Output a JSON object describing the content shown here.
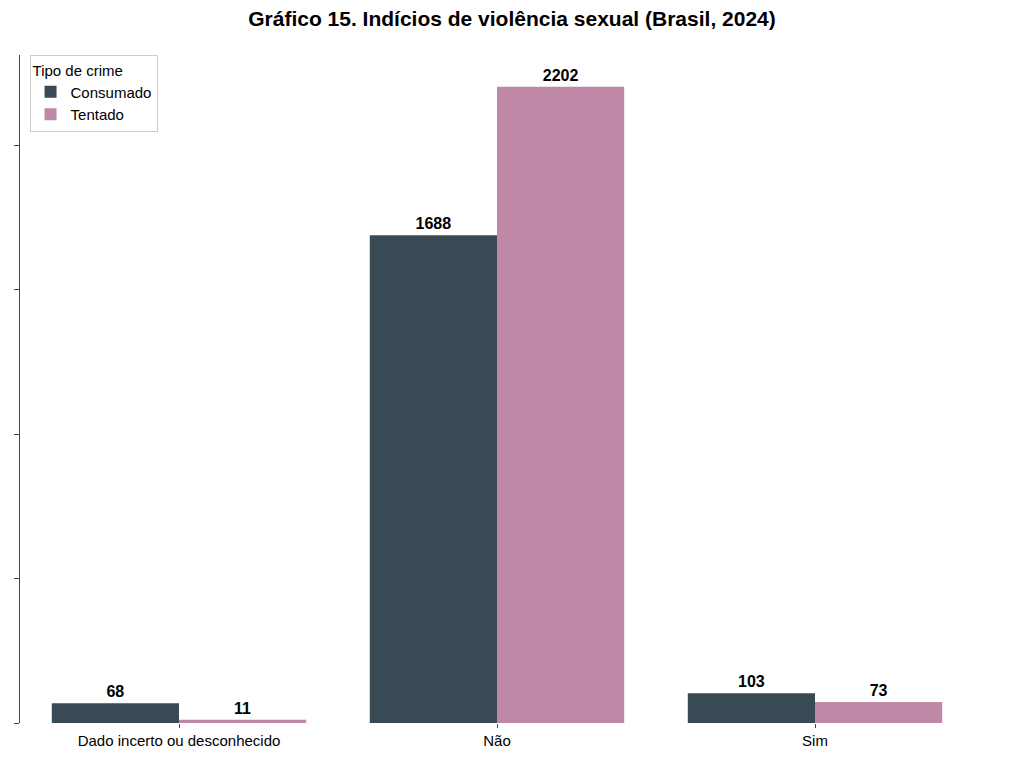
{
  "chart_data": {
    "type": "bar",
    "title": "Gráfico 15. Indícios de violência sexual (Brasil, 2024)",
    "categories": [
      "Dado incerto ou desconhecido",
      "Não",
      "Sim"
    ],
    "series": [
      {
        "name": "Consumado",
        "color": "#3a4a55",
        "values": [
          68,
          1688,
          103
        ]
      },
      {
        "name": "Tentado",
        "color": "#bf88a6",
        "values": [
          11,
          2202,
          73
        ]
      }
    ],
    "legend_title": "Tipo de crime",
    "legend": "upper left",
    "ylim": [
      0,
      2312
    ],
    "yticks": [
      0,
      500,
      1000,
      1500,
      2000
    ],
    "tick_labels": "x",
    "grid": false,
    "data_labels": true
  }
}
